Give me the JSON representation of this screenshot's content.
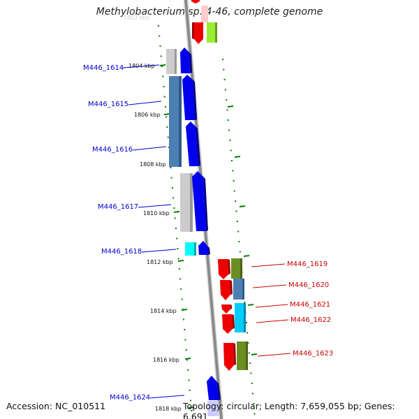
{
  "title": "Methylobacterium sp. 4-46, complete genome",
  "footer": {
    "accession": "Accession: NC_010511",
    "topology": "Topology: circular; Length: 7,659,055 bp; Genes: 6,691"
  },
  "faded_top_label": "1802 kbp",
  "kbp_labels": [
    "1804 kbp",
    "1806 kbp",
    "1808 kbp",
    "1810 kbp",
    "1812 kbp",
    "1814 kbp",
    "1816 kbp",
    "1818 kbp"
  ],
  "genes_left": [
    {
      "label": "M446_1614",
      "color": "#0000cc"
    },
    {
      "label": "M446_1615",
      "color": "#0000cc"
    },
    {
      "label": "M446_1616",
      "color": "#0000cc"
    },
    {
      "label": "M446_1617",
      "color": "#0000cc"
    },
    {
      "label": "M446_1618",
      "color": "#0000cc"
    },
    {
      "label": "M446_1624",
      "color": "#0000cc"
    }
  ],
  "genes_right": [
    {
      "label": "M446_1619",
      "color": "#cc0000"
    },
    {
      "label": "M446_1620",
      "color": "#cc0000"
    },
    {
      "label": "M446_1621",
      "color": "#cc0000"
    },
    {
      "label": "M446_1622",
      "color": "#cc0000"
    },
    {
      "label": "M446_1623",
      "color": "#cc0000"
    }
  ],
  "colors": {
    "backbone": "#808080",
    "forward_gene": "#0000ee",
    "reverse_gene": "#ee0000",
    "gc_dots": "#008000"
  }
}
